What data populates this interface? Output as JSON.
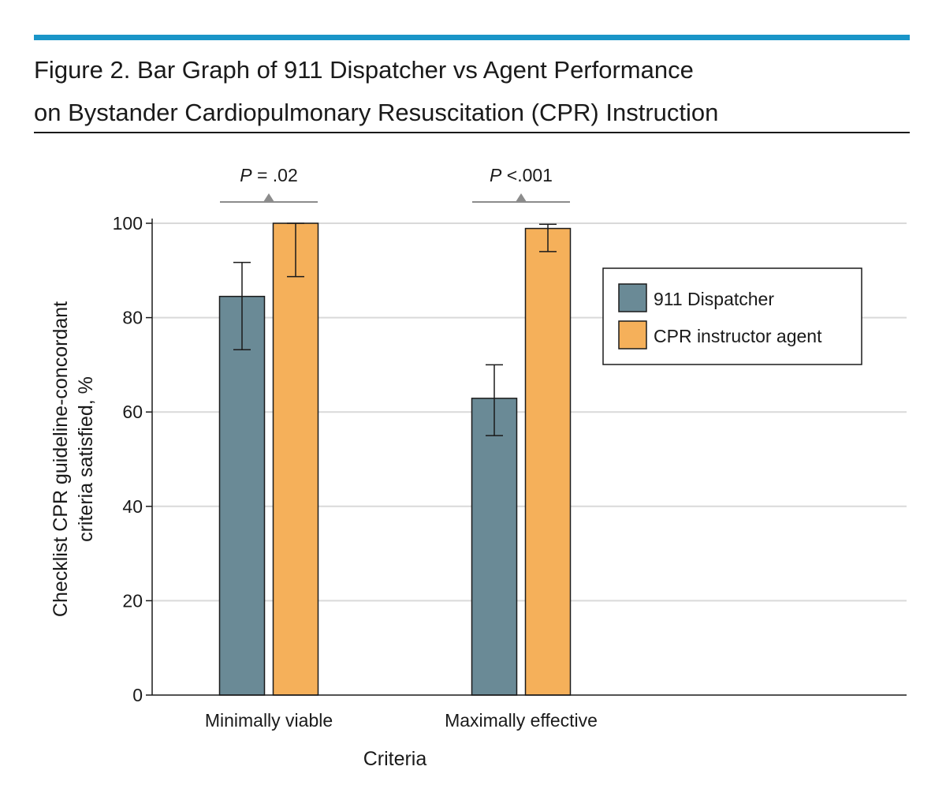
{
  "figure": {
    "title_line1": "Figure 2. Bar Graph of 911 Dispatcher vs Agent Performance",
    "title_line2": "on Bystander Cardiopulmonary Resuscitation (CPR) Instruction"
  },
  "chart_data": {
    "type": "bar",
    "title": "",
    "xlabel": "Criteria",
    "ylabel_lines": [
      "Checklist CPR guideline-concordant",
      "criteria satisfied, %"
    ],
    "ylim": [
      0,
      100
    ],
    "yticks": [
      0,
      20,
      40,
      60,
      80,
      100
    ],
    "grid": true,
    "legend_position": "top-right",
    "categories": [
      "Minimally viable",
      "Maximally effective"
    ],
    "series": [
      {
        "name": "911 Dispatcher",
        "color": "#6a8a96",
        "values": [
          84.5,
          62.9
        ],
        "err_low": [
          73.2,
          55.0
        ],
        "err_high": [
          91.7,
          70.0
        ]
      },
      {
        "name": "CPR instructor agent",
        "color": "#f5b05a",
        "values": [
          100,
          98.9
        ],
        "err_low": [
          88.7,
          94.0
        ],
        "err_high": [
          100,
          99.8
        ]
      }
    ],
    "annotations": [
      {
        "category": "Minimally viable",
        "p_symbol": "P",
        "p_text": " = .02"
      },
      {
        "category": "Maximally effective",
        "p_symbol": "P",
        "p_text": " <.001"
      }
    ]
  }
}
